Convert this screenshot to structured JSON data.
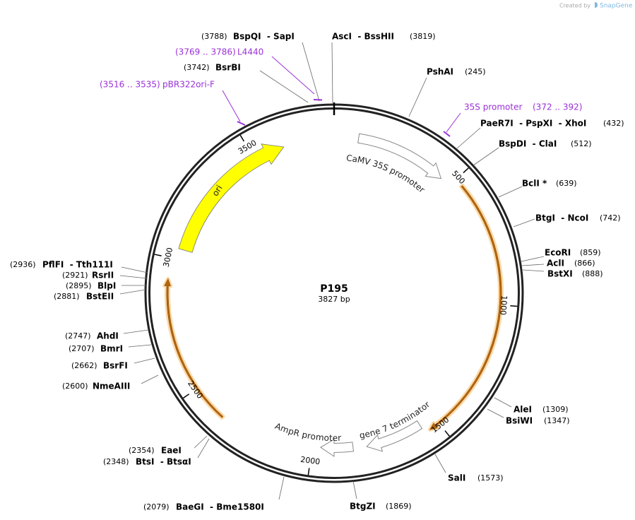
{
  "watermark": {
    "prefix": "Created by",
    "brand": "SnapGene"
  },
  "map": {
    "name": "P195",
    "length": "3827 bp"
  },
  "ticks": [
    500,
    1000,
    1500,
    2000,
    2500,
    3000,
    3500
  ],
  "features": [
    {
      "label": "ori"
    },
    {
      "label": "CaMV 35S promoter"
    },
    {
      "label": "gene 7 terminator"
    },
    {
      "label": "AmpR promoter"
    }
  ],
  "primers": [
    {
      "label": "L4440",
      "range": "(3769 .. 3786)"
    },
    {
      "label": "pBR322ori-F",
      "range": "(3516 .. 3535)"
    },
    {
      "label": "35S promoter",
      "range": "(372 .. 392)"
    }
  ],
  "sites": [
    {
      "label": "BspQI  - SapI",
      "position": "(3788)"
    },
    {
      "label": "AscI  - BssHII",
      "position": "(3819)"
    },
    {
      "label": "BsrBI",
      "position": "(3742)"
    },
    {
      "label": "PshAI",
      "position": "(245)"
    },
    {
      "label": "PaeR7I  - PspXI  - XhoI",
      "position": "(432)"
    },
    {
      "label": "BspDI  - ClaI",
      "position": "(512)"
    },
    {
      "label": "BclI *",
      "position": "(639)"
    },
    {
      "label": "BtgI  - NcoI",
      "position": "(742)"
    },
    {
      "label": "EcoRI",
      "position": "(859)"
    },
    {
      "label": "AclI",
      "position": "(866)"
    },
    {
      "label": "BstXI",
      "position": "(888)"
    },
    {
      "label": "AleI",
      "position": "(1309)"
    },
    {
      "label": "BsiWI",
      "position": "(1347)"
    },
    {
      "label": "SalI",
      "position": "(1573)"
    },
    {
      "label": "BtgZI",
      "position": "(1869)"
    },
    {
      "label": "BaeGI  - Bme1580I",
      "position": "(2079)"
    },
    {
      "label": "EaeI",
      "position": "(2354)"
    },
    {
      "label": "BtsI  - BtsαI",
      "position": "(2348)"
    },
    {
      "label": "NmeAIII",
      "position": "(2600)"
    },
    {
      "label": "BsrFI",
      "position": "(2662)"
    },
    {
      "label": "BmrI",
      "position": "(2707)"
    },
    {
      "label": "AhdI",
      "position": "(2747)"
    },
    {
      "label": "BstEII",
      "position": "(2881)"
    },
    {
      "label": "BlpI",
      "position": "(2895)"
    },
    {
      "label": "RsrII",
      "position": "(2921)"
    },
    {
      "label": "PflFI  - Tth111I",
      "position": "(2936)"
    }
  ]
}
